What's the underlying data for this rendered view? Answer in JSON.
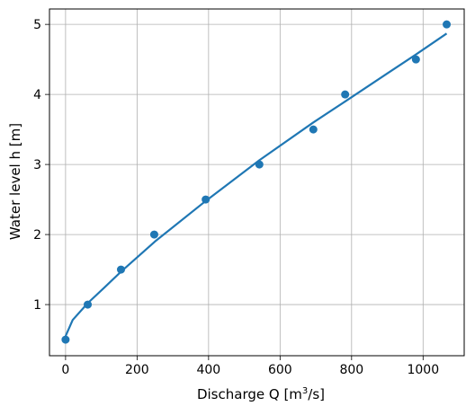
{
  "chart_data": {
    "type": "scatter",
    "title": "",
    "xlabel_main": "Discharge Q [m",
    "xlabel_sup": "3",
    "xlabel_tail": "/s]",
    "ylabel": "Water level h [m]",
    "xlim": [
      -45,
      1115
    ],
    "ylim": [
      0.27,
      5.22
    ],
    "xticks": [
      0,
      200,
      400,
      600,
      800,
      1000
    ],
    "yticks": [
      1,
      2,
      3,
      4,
      5
    ],
    "xtick_labels": [
      "0",
      "200",
      "400",
      "600",
      "800",
      "1000"
    ],
    "ytick_labels": [
      "1",
      "2",
      "3",
      "4",
      "5"
    ],
    "grid": true,
    "series": [
      {
        "kind": "scatter",
        "color": "#1f77b4",
        "x": [
          0,
          62,
          155,
          248,
          392,
          542,
          693,
          782,
          980,
          1066
        ],
        "y": [
          0.5,
          1.0,
          1.5,
          2.0,
          2.5,
          3.0,
          3.5,
          4.0,
          4.5,
          5.0
        ]
      },
      {
        "kind": "line",
        "color": "#1f77b4",
        "x": [
          0,
          20,
          62,
          110,
          155,
          250,
          392,
          542,
          693,
          782,
          900,
          980,
          1066
        ],
        "y": [
          0.55,
          0.78,
          1.02,
          1.25,
          1.47,
          1.9,
          2.48,
          3.06,
          3.6,
          3.9,
          4.3,
          4.57,
          4.87
        ]
      }
    ]
  }
}
